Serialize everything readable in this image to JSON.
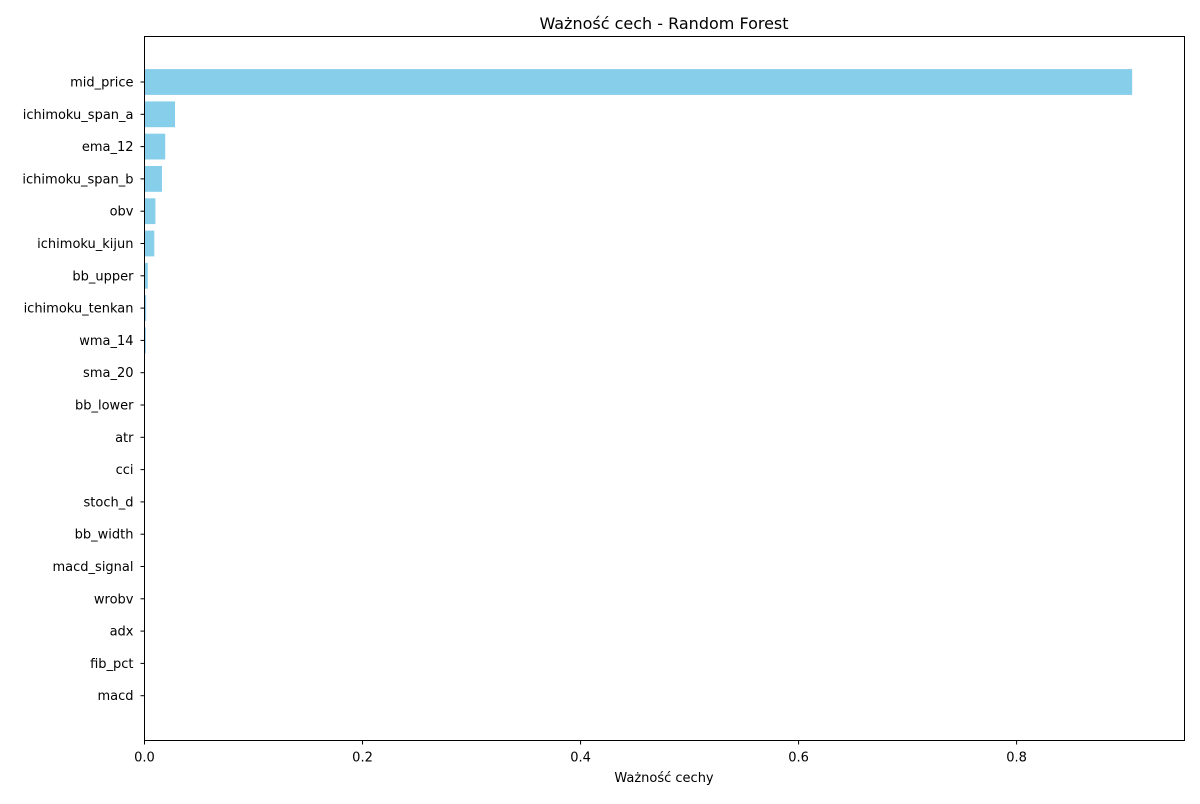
{
  "chart_data": {
    "type": "bar",
    "orientation": "horizontal",
    "title": "Ważność cech - Random Forest",
    "xlabel": "Ważność cechy",
    "ylabel": "",
    "categories": [
      "mid_price",
      "ichimoku_span_a",
      "ema_12",
      "ichimoku_span_b",
      "obv",
      "ichimoku_kijun",
      "bb_upper",
      "ichimoku_tenkan",
      "wma_14",
      "sma_20",
      "bb_lower",
      "atr",
      "cci",
      "stoch_d",
      "bb_width",
      "macd_signal",
      "wrobv",
      "adx",
      "fib_pct",
      "macd"
    ],
    "values": [
      0.906,
      0.028,
      0.019,
      0.016,
      0.01,
      0.009,
      0.003,
      0.0015,
      0.0012,
      0.0004,
      0.0003,
      0.0002,
      0.0001,
      0.0001,
      0.0001,
      5e-05,
      5e-05,
      3e-05,
      2e-05,
      1e-05
    ],
    "xlim": [
      0,
      0.954
    ],
    "xticks": [
      0.0,
      0.2,
      0.4,
      0.6,
      0.8
    ],
    "xtick_labels": [
      "0.0",
      "0.2",
      "0.4",
      "0.6",
      "0.8"
    ],
    "grid": false,
    "legend": "none",
    "bar_color": "#87CEEB",
    "axis_color": "#000000"
  }
}
